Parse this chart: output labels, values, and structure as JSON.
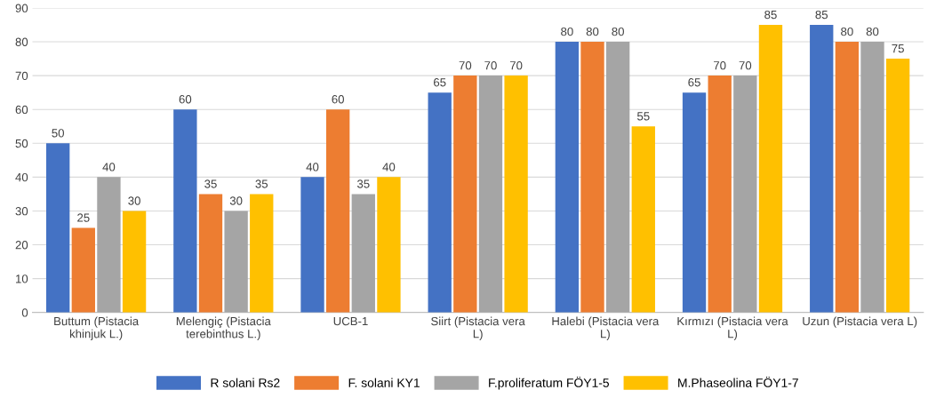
{
  "chart_data": {
    "type": "bar",
    "categories": [
      "Buttum (Pistacia khinjuk L.)",
      "Melengiç (Pistacia terebinthus L.)",
      "UCB-1",
      "Siirt (Pistacia vera L)",
      "Halebi (Pistacia vera L)",
      "Kırmızı (Pistacia vera L)",
      "Uzun (Pistacia vera L)"
    ],
    "series": [
      {
        "name": "R solani Rs2",
        "color": "#4472c4",
        "values": [
          50,
          60,
          40,
          65,
          80,
          65,
          85
        ]
      },
      {
        "name": "F. solani KY1",
        "color": "#ed7d31",
        "values": [
          25,
          35,
          60,
          70,
          80,
          70,
          80
        ]
      },
      {
        "name": "F.proliferatum FÖY1-5",
        "color": "#a5a5a5",
        "values": [
          40,
          30,
          35,
          70,
          80,
          70,
          80
        ]
      },
      {
        "name": "M.Phaseolina FÖY1-7",
        "color": "#ffc000",
        "values": [
          30,
          35,
          40,
          70,
          55,
          85,
          75
        ]
      }
    ],
    "ylim": [
      0,
      90
    ],
    "yticks": [
      0,
      10,
      20,
      30,
      40,
      50,
      60,
      70,
      80,
      90
    ],
    "grid": "y",
    "legend": "bottom",
    "data_labels": true
  }
}
